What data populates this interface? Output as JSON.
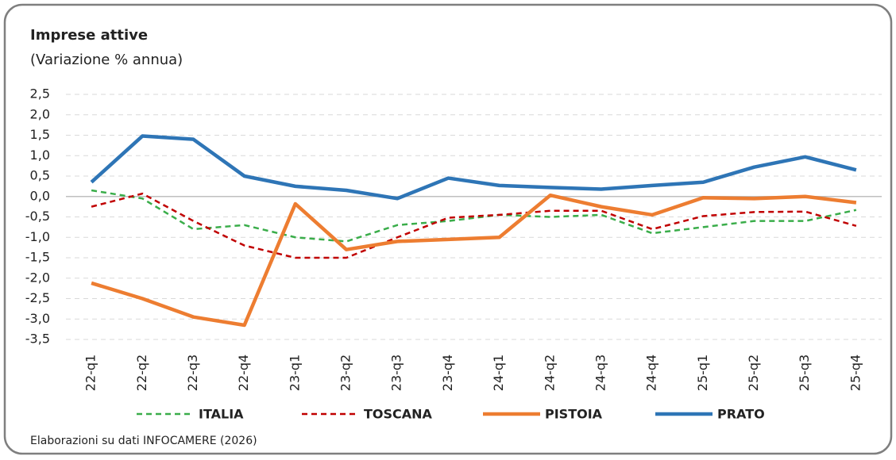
{
  "chart_data": {
    "type": "line",
    "title": "Imprese attive",
    "subtitle": "(Variazione % annua)",
    "source": "Elaborazioni su dati INFOCAMERE (2026)",
    "categories": [
      "22-q1",
      "22-q2",
      "22-q3",
      "22-q4",
      "23-q1",
      "23-q2",
      "23-q3",
      "23-q4",
      "24-q1",
      "24-q2",
      "24-q3",
      "24-q4",
      "25-q1",
      "25-q2",
      "25-q3",
      "25-q4"
    ],
    "series": [
      {
        "name": "ITALIA",
        "color": "#3aad4a",
        "line_style": "dashed",
        "values": [
          0.15,
          -0.05,
          -0.8,
          -0.7,
          -1.0,
          -1.1,
          -0.7,
          -0.6,
          -0.45,
          -0.5,
          -0.45,
          -0.9,
          -0.75,
          -0.6,
          -0.6,
          -0.33
        ]
      },
      {
        "name": "TOSCANA",
        "color": "#c00000",
        "line_style": "dashed",
        "values": [
          -0.25,
          0.07,
          -0.6,
          -1.2,
          -1.5,
          -1.5,
          -1.0,
          -0.52,
          -0.45,
          -0.35,
          -0.35,
          -0.8,
          -0.48,
          -0.38,
          -0.37,
          -0.72
        ]
      },
      {
        "name": "PISTOIA",
        "color": "#ed7d31",
        "line_style": "solid",
        "values": [
          -2.12,
          -2.5,
          -2.95,
          -3.15,
          -0.18,
          -1.3,
          -1.1,
          -1.05,
          -1.0,
          0.03,
          -0.25,
          -0.45,
          -0.03,
          -0.05,
          0.0,
          -0.15
        ]
      },
      {
        "name": "PRATO",
        "color": "#2e75b6",
        "line_style": "solid",
        "values": [
          0.35,
          1.48,
          1.4,
          0.5,
          0.25,
          0.15,
          -0.05,
          0.45,
          0.27,
          0.22,
          0.18,
          0.27,
          0.35,
          0.72,
          0.97,
          0.65
        ]
      }
    ],
    "ylim": [
      -3.5,
      2.5
    ],
    "yticks": [
      {
        "value": -3.5,
        "label": "-3,5"
      },
      {
        "value": -3,
        "label": "-3,0"
      },
      {
        "value": -2.5,
        "label": "-2,5"
      },
      {
        "value": -2,
        "label": "-2,0"
      },
      {
        "value": -1.5,
        "label": "-1,5"
      },
      {
        "value": -1,
        "label": "-1,0"
      },
      {
        "value": -0.5,
        "label": "-0,5"
      },
      {
        "value": 0,
        "label": "0,0"
      },
      {
        "value": 0.5,
        "label": "0,5"
      },
      {
        "value": 1,
        "label": "1,0"
      },
      {
        "value": 1.5,
        "label": "1,5"
      },
      {
        "value": 2,
        "label": "2,0"
      },
      {
        "value": 2.5,
        "label": "2,5"
      }
    ],
    "grid": true,
    "legend": "bottom"
  }
}
